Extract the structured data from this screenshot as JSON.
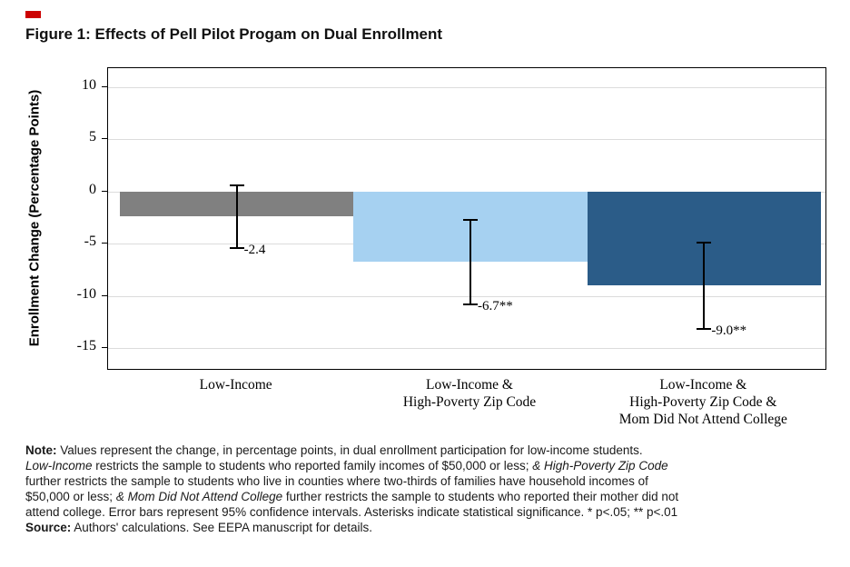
{
  "accent_color": "#cc0000",
  "chart_data": {
    "type": "bar",
    "title": "Figure 1: Effects of Pell Pilot Progam on Dual Enrollment",
    "ylabel": "Enrollment Change (Percentage Points)",
    "xlabel": "",
    "ylim": [
      -15,
      10
    ],
    "yticks": [
      10,
      5,
      0,
      -5,
      -10,
      -15
    ],
    "grid": true,
    "legend": false,
    "categories": [
      "Low-Income",
      "Low-Income &\nHigh-Poverty Zip Code",
      "Low-Income &\nHigh-Poverty Zip Code &\nMom Did Not Attend College"
    ],
    "values": [
      -2.4,
      -6.7,
      -9.0
    ],
    "value_labels": [
      "-2.4",
      "-6.7**",
      "-9.0**"
    ],
    "ci_high": [
      0.7,
      -2.6,
      -4.8
    ],
    "ci_low": [
      -5.5,
      -10.9,
      -13.3
    ],
    "bar_colors": [
      "#808080",
      "#a6d1f1",
      "#2b5c88"
    ],
    "gridline_color": "#dcdcdc"
  },
  "notes": {
    "segments": [
      {
        "text": "Note:",
        "bold": true
      },
      {
        "text": " Values represent the change, in percentage points, in dual enrollment participation for low-income students."
      },
      {
        "br": true
      },
      {
        "text": "Low-Income",
        "italic": true
      },
      {
        "text": " restricts the sample to students who reported family incomes of $50,000 or less; "
      },
      {
        "text": "& High-Poverty Zip Code",
        "italic": true
      },
      {
        "br": true
      },
      {
        "text": "further restricts the sample to students who live in counties where two-thirds of families have household incomes of"
      },
      {
        "br": true
      },
      {
        "text": "$50,000 or less; "
      },
      {
        "text": "& Mom Did Not Attend College",
        "italic": true
      },
      {
        "text": " further restricts the sample to students who reported their mother did not"
      },
      {
        "br": true
      },
      {
        "text": "attend college. Error bars represent 95% confidence intervals. Asterisks indicate statistical significance. * p<.05; ** p<.01"
      },
      {
        "br": true
      },
      {
        "text": "Source:",
        "bold": true
      },
      {
        "text": " Authors' calculations. See EEPA manuscript for details."
      }
    ]
  }
}
